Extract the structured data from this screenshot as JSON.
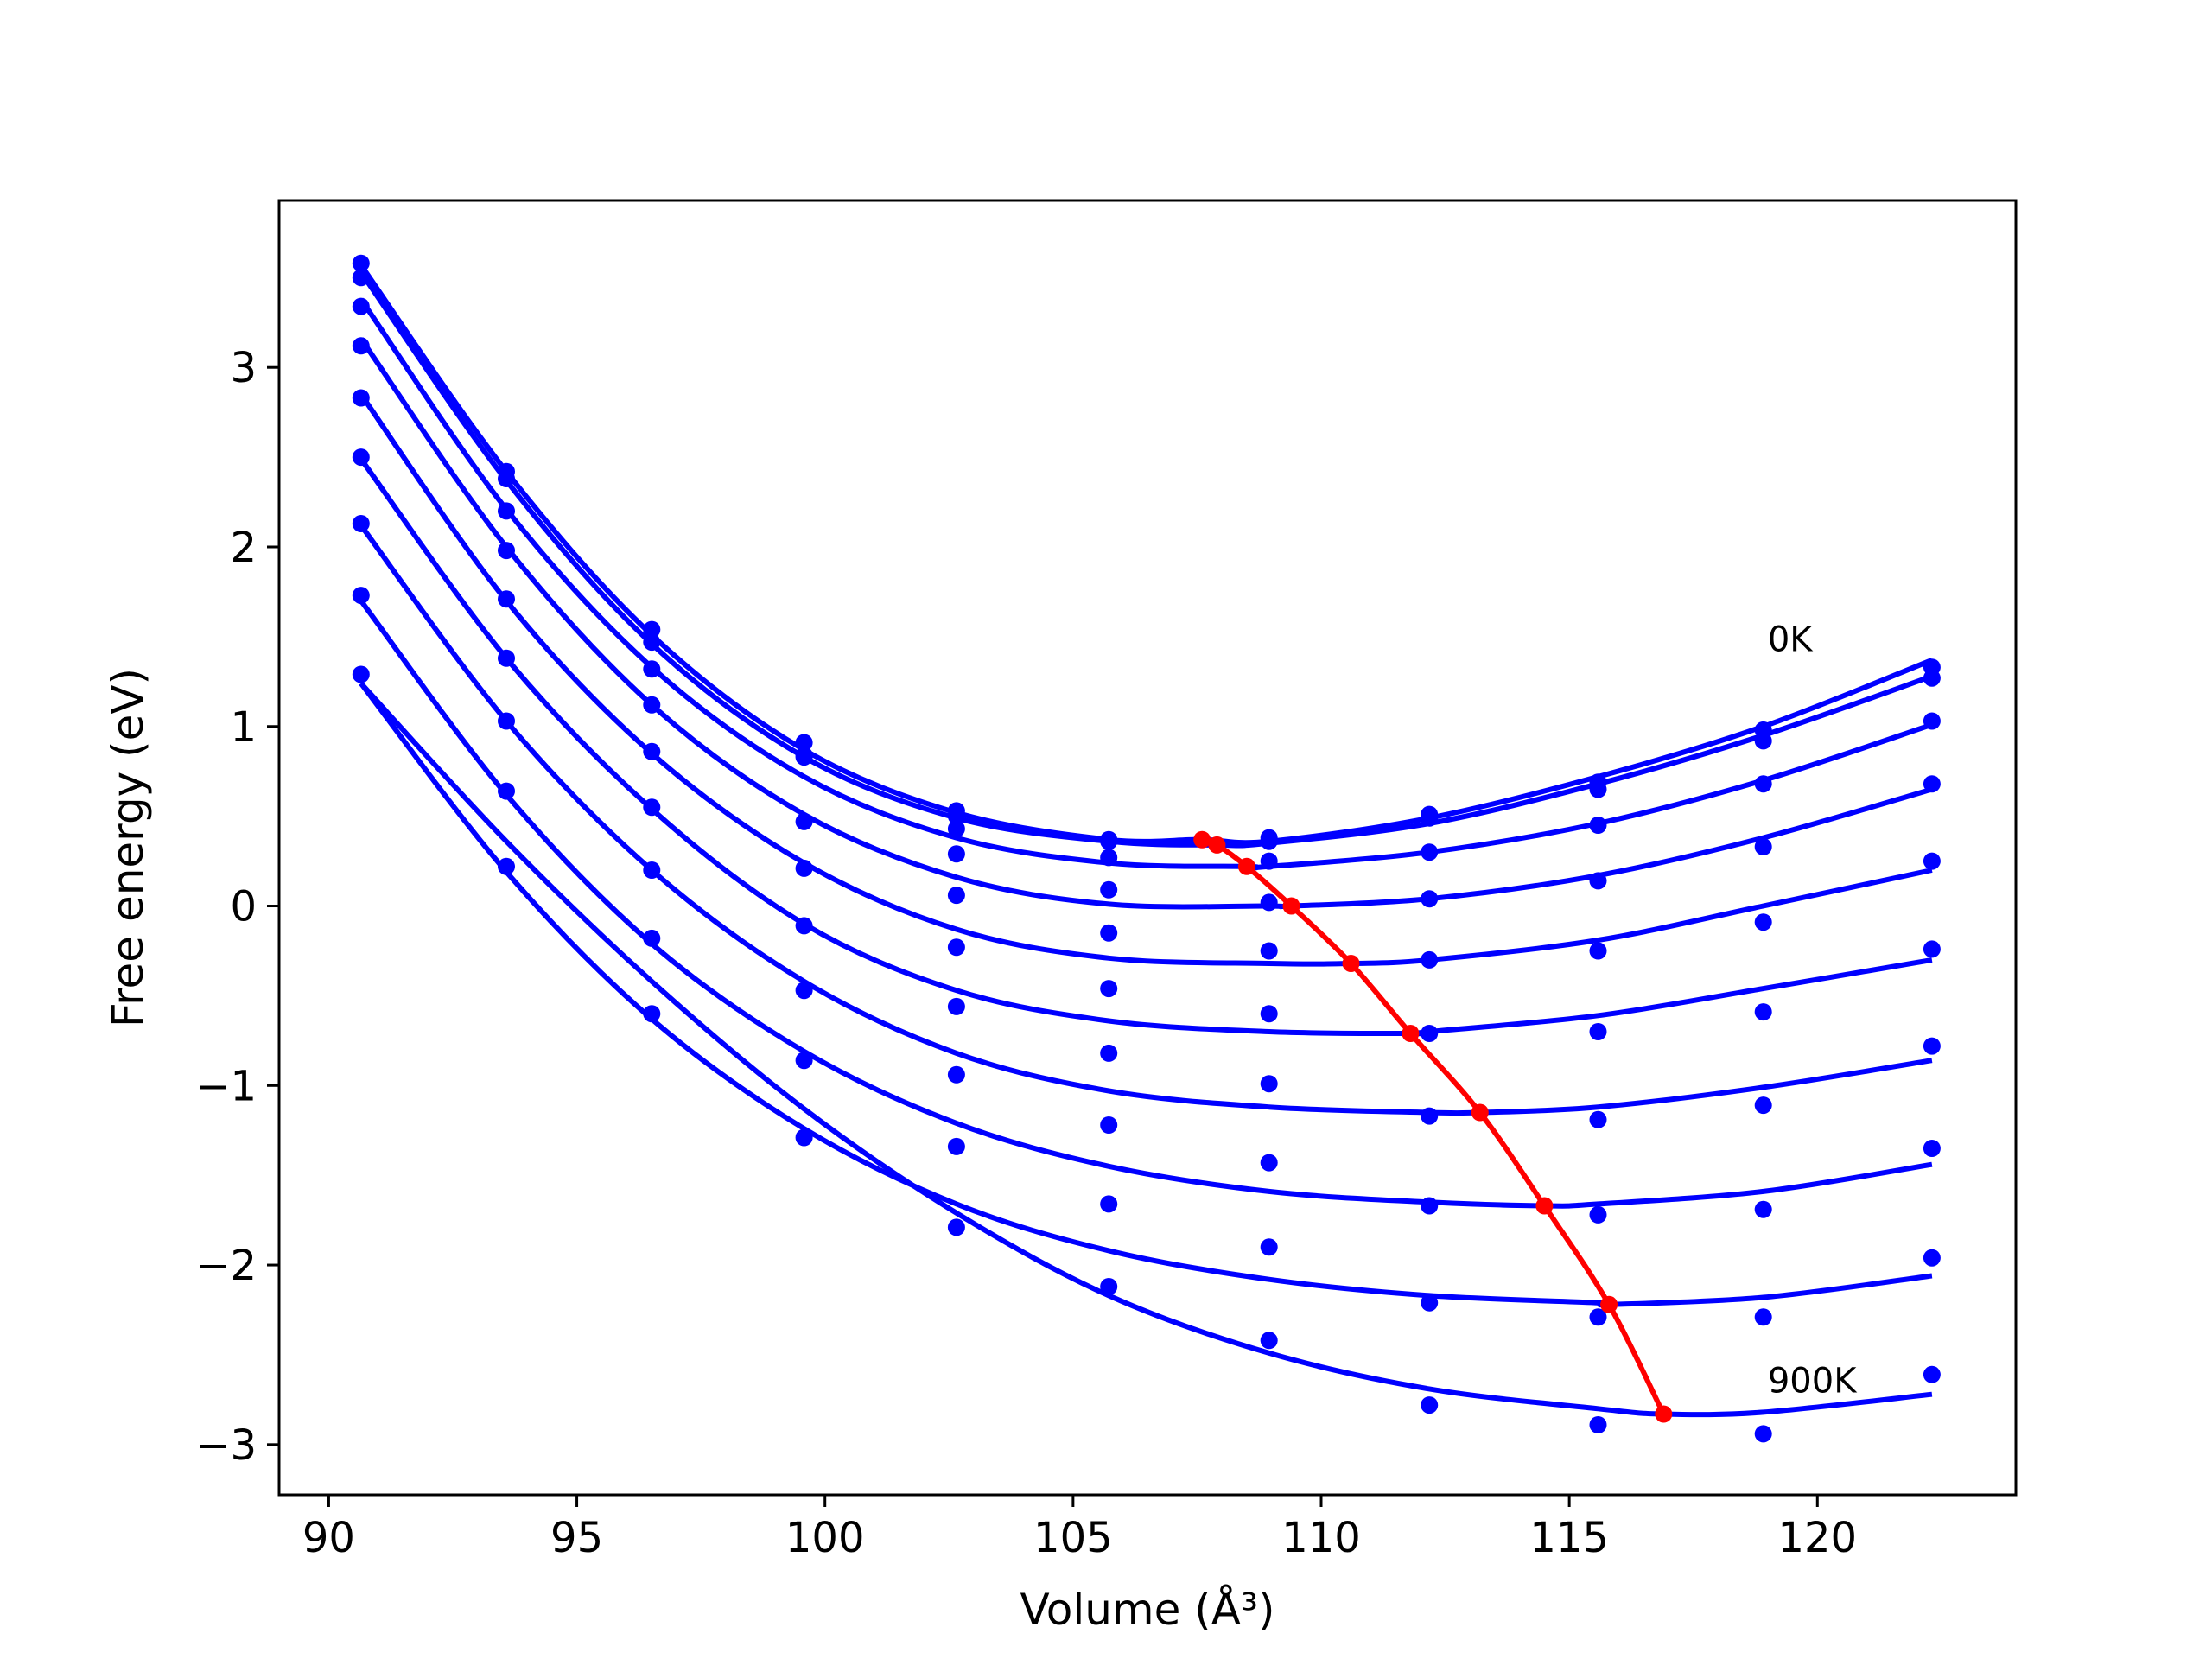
{
  "chart_data": {
    "type": "scatter",
    "title": "",
    "xlabel": "Volume (Å³)",
    "ylabel": "Free energy (eV)",
    "xlim": [
      89,
      124
    ],
    "ylim": [
      -3.28,
      3.93
    ],
    "xticks": [
      90,
      95,
      100,
      105,
      110,
      115,
      120
    ],
    "yticks": [
      -3,
      -2,
      -1,
      0,
      1,
      2,
      3
    ],
    "xtick_labels": [
      "90",
      "95",
      "100",
      "105",
      "110",
      "115",
      "120"
    ],
    "ytick_labels": [
      "−3",
      "−2",
      "−1",
      "0",
      "1",
      "2",
      "3"
    ],
    "grid": false,
    "legend": "none",
    "colors": {
      "data": "#0000ff",
      "minimum": "#ff0000"
    },
    "annotations": [
      {
        "text": "0K",
        "x": 119.0,
        "y": 1.42
      },
      {
        "text": "900K",
        "x": 119.0,
        "y": -2.71
      }
    ],
    "x": [
      90.65,
      93.58,
      96.51,
      99.58,
      102.65,
      105.72,
      108.95,
      112.18,
      115.58,
      118.91,
      122.31
    ],
    "series": [
      {
        "values": [
          3.58,
          2.42,
          1.54,
          0.91,
          0.53,
          0.37,
          0.38,
          0.51,
          0.69,
          0.98,
          1.33
        ],
        "min": [
          107.6,
          0.37
        ],
        "fit": [
          3.57,
          2.42,
          1.51,
          0.87,
          0.52,
          0.37,
          0.36,
          0.49,
          0.72,
          1.0,
          1.37
        ]
      },
      {
        "values": [
          3.5,
          2.38,
          1.47,
          0.83,
          0.5,
          0.36,
          0.36,
          0.49,
          0.65,
          0.92,
          1.27
        ],
        "min": [
          107.9,
          0.34
        ],
        "fit": [
          3.53,
          2.37,
          1.46,
          0.83,
          0.49,
          0.36,
          0.35,
          0.46,
          0.68,
          0.95,
          1.28
        ]
      },
      {
        "values": [
          3.34,
          2.2,
          1.32,
          0.84,
          0.43,
          0.27,
          0.25,
          0.3,
          0.45,
          0.68,
          1.03
        ],
        "min": [
          108.5,
          0.22
        ],
        "fit": [
          3.38,
          2.21,
          1.33,
          0.72,
          0.38,
          0.24,
          0.22,
          0.3,
          0.46,
          0.7,
          1.01
        ]
      },
      {
        "values": [
          3.12,
          1.98,
          1.12,
          0.47,
          0.29,
          0.09,
          0.02,
          0.04,
          0.14,
          0.33,
          0.68
        ],
        "min": [
          109.4,
          0.0
        ],
        "fit": [
          3.16,
          2.0,
          1.12,
          0.51,
          0.16,
          0.01,
          0.0,
          0.04,
          0.17,
          0.38,
          0.65
        ]
      },
      {
        "values": [
          2.83,
          1.71,
          0.86,
          0.21,
          0.06,
          -0.15,
          -0.25,
          -0.3,
          -0.25,
          -0.09,
          0.25
        ],
        "min": [
          110.6,
          -0.32
        ],
        "fit": [
          2.85,
          1.7,
          0.85,
          0.24,
          -0.13,
          -0.29,
          -0.32,
          -0.3,
          -0.19,
          0.0,
          0.2
        ]
      },
      {
        "values": [
          2.5,
          1.38,
          0.55,
          -0.11,
          -0.23,
          -0.46,
          -0.6,
          -0.71,
          -0.7,
          -0.59,
          -0.24
        ],
        "min": [
          111.8,
          -0.71
        ],
        "fit": [
          2.49,
          1.38,
          0.54,
          -0.1,
          -0.47,
          -0.64,
          -0.7,
          -0.7,
          -0.61,
          -0.46,
          -0.3
        ]
      },
      {
        "values": [
          2.13,
          1.03,
          0.2,
          -0.47,
          -0.56,
          -0.82,
          -0.99,
          -1.17,
          -1.19,
          -1.11,
          -0.78
        ],
        "min": [
          113.2,
          -1.15
        ],
        "fit": [
          2.12,
          1.03,
          0.2,
          -0.42,
          -0.82,
          -1.03,
          -1.12,
          -1.15,
          -1.12,
          -1.01,
          -0.86
        ]
      },
      {
        "values": [
          1.73,
          0.64,
          -0.18,
          -0.86,
          -0.94,
          -1.22,
          -1.43,
          -1.67,
          -1.72,
          -1.69,
          -1.35
        ],
        "min": [
          114.5,
          -1.67
        ],
        "fit": [
          1.7,
          0.62,
          -0.21,
          -0.81,
          -1.21,
          -1.45,
          -1.59,
          -1.65,
          -1.66,
          -1.59,
          -1.44
        ]
      },
      {
        "values": [
          1.29,
          0.22,
          -0.6,
          -1.29,
          -1.34,
          -1.66,
          -1.9,
          -2.21,
          -2.29,
          -2.29,
          -1.96
        ],
        "min": [
          115.8,
          -2.22
        ],
        "fit": [
          1.24,
          0.19,
          -0.63,
          -1.24,
          -1.66,
          -1.92,
          -2.08,
          -2.17,
          -2.21,
          -2.18,
          -2.06
        ]
      },
      {
        "values": [
          null,
          null,
          null,
          null,
          -1.79,
          -2.12,
          -2.42,
          -2.78,
          -2.89,
          -2.94,
          -2.61
        ],
        "min": [
          116.9,
          -2.83
        ],
        "fit": [
          1.24,
          0.36,
          -0.42,
          -1.13,
          -1.71,
          -2.17,
          -2.49,
          -2.69,
          -2.8,
          -2.82,
          -2.72
        ]
      }
    ],
    "minimum_curve": {
      "x": [
        107.6,
        107.9,
        108.5,
        109.4,
        110.6,
        111.8,
        113.2,
        114.5,
        115.8,
        116.9
      ],
      "y": [
        0.37,
        0.34,
        0.22,
        0.0,
        -0.32,
        -0.71,
        -1.15,
        -1.67,
        -2.22,
        -2.83
      ]
    }
  }
}
